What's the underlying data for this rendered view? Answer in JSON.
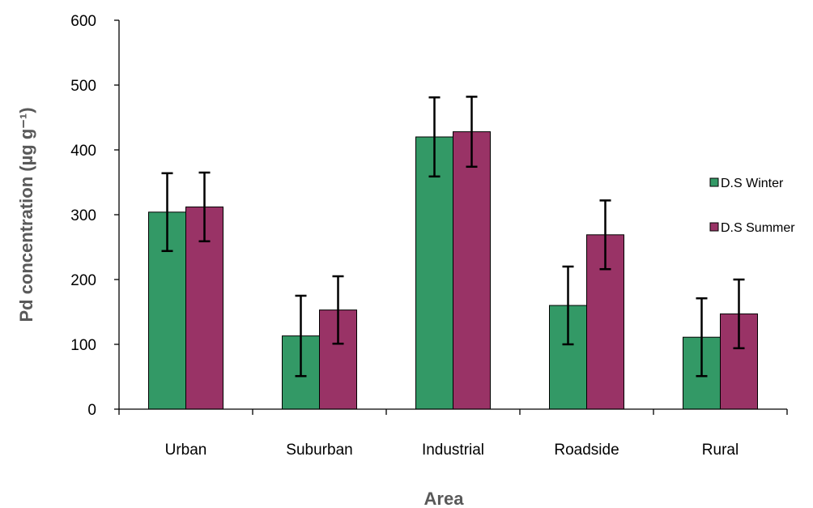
{
  "chart_data": {
    "type": "bar",
    "xlabel": "Area",
    "ylabel": "Pd concentration (µg g⁻¹)",
    "ylim": [
      0,
      600
    ],
    "yticks": [
      0,
      100,
      200,
      300,
      400,
      500,
      600
    ],
    "categories": [
      "Urban",
      "Suburban",
      "Industrial",
      "Roadside",
      "Rural"
    ],
    "series": [
      {
        "name": "D.S Winter",
        "color": "#339966",
        "values": [
          304,
          113,
          420,
          160,
          111
        ],
        "error": [
          60,
          62,
          61,
          60,
          60
        ]
      },
      {
        "name": "D.S Summer",
        "color": "#993366",
        "values": [
          312,
          153,
          428,
          269,
          147
        ],
        "error": [
          53,
          52,
          54,
          53,
          53
        ]
      }
    ],
    "legend_position": "right",
    "grid": false
  }
}
